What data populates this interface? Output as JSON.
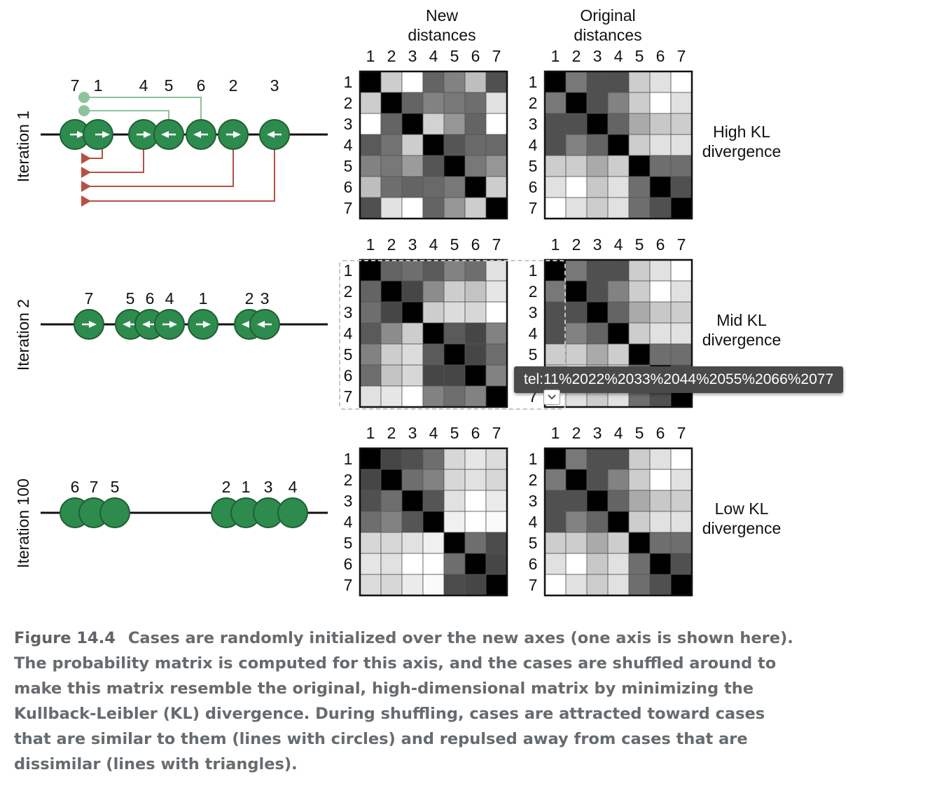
{
  "figure": {
    "column_headers": {
      "new": [
        "New",
        "distances"
      ],
      "original": [
        "Original",
        "distances"
      ]
    },
    "rows": [
      {
        "iteration_label": "Iteration 1",
        "divergence_label": [
          "High KL",
          "divergence"
        ],
        "case_labels": [
          "7",
          "1",
          "4",
          "5",
          "6",
          "2",
          "3"
        ],
        "new_matrix": [
          [
            0,
            205,
            255,
            100,
            130,
            190,
            80
          ],
          [
            205,
            0,
            100,
            130,
            120,
            110,
            225
          ],
          [
            255,
            100,
            0,
            210,
            150,
            100,
            255
          ],
          [
            90,
            115,
            205,
            0,
            85,
            105,
            105
          ],
          [
            130,
            120,
            155,
            85,
            0,
            120,
            150
          ],
          [
            190,
            110,
            100,
            105,
            120,
            0,
            205
          ],
          [
            80,
            225,
            255,
            100,
            150,
            205,
            0
          ]
        ],
        "original_matrix": [
          [
            0,
            120,
            80,
            80,
            205,
            225,
            255
          ],
          [
            120,
            0,
            80,
            130,
            205,
            255,
            225
          ],
          [
            80,
            80,
            0,
            100,
            170,
            200,
            205
          ],
          [
            80,
            130,
            100,
            0,
            205,
            225,
            225
          ],
          [
            205,
            205,
            170,
            205,
            0,
            110,
            110
          ],
          [
            225,
            255,
            200,
            225,
            110,
            0,
            80
          ],
          [
            255,
            225,
            205,
            225,
            110,
            80,
            0
          ]
        ],
        "arrows": [
          {
            "x": 110,
            "dir": "right"
          },
          {
            "x": 146,
            "dir": "right"
          },
          {
            "x": 205,
            "dir": "right"
          },
          {
            "x": 241,
            "dir": "left"
          },
          {
            "x": 287,
            "dir": "left"
          },
          {
            "x": 333,
            "dir": "right"
          },
          {
            "x": 392,
            "dir": "left"
          }
        ],
        "tick_labels_x": [
          107,
          140,
          205,
          241,
          287,
          333,
          392
        ]
      },
      {
        "iteration_label": "Iteration 2",
        "divergence_label": [
          "Mid KL",
          "divergence"
        ],
        "case_labels": [
          "7",
          "5",
          "6",
          "4",
          "1",
          "2",
          "3"
        ],
        "new_matrix": [
          [
            0,
            100,
            110,
            90,
            130,
            110,
            225
          ],
          [
            100,
            0,
            70,
            140,
            205,
            195,
            230
          ],
          [
            110,
            70,
            0,
            205,
            220,
            215,
            255
          ],
          [
            90,
            140,
            205,
            0,
            90,
            70,
            130
          ],
          [
            130,
            205,
            220,
            90,
            0,
            70,
            110
          ],
          [
            110,
            195,
            215,
            70,
            70,
            0,
            130
          ],
          [
            225,
            230,
            255,
            130,
            110,
            130,
            0
          ]
        ],
        "original_matrix": [
          [
            0,
            120,
            80,
            80,
            205,
            225,
            255
          ],
          [
            120,
            0,
            80,
            130,
            205,
            255,
            225
          ],
          [
            80,
            80,
            0,
            100,
            170,
            200,
            205
          ],
          [
            80,
            130,
            100,
            0,
            205,
            225,
            225
          ],
          [
            205,
            205,
            170,
            205,
            0,
            110,
            110
          ],
          [
            225,
            255,
            200,
            225,
            110,
            0,
            80
          ],
          [
            255,
            225,
            205,
            225,
            110,
            80,
            0
          ]
        ],
        "arrows": [
          {
            "x": 127,
            "dir": "right"
          },
          {
            "x": 186,
            "dir": "left"
          },
          {
            "x": 214,
            "dir": "left"
          },
          {
            "x": 242,
            "dir": "right"
          },
          {
            "x": 290,
            "dir": "right"
          },
          {
            "x": 356,
            "dir": "left"
          },
          {
            "x": 378,
            "dir": "left"
          }
        ],
        "tick_labels_x": [
          127,
          186,
          214,
          242,
          290,
          356,
          378
        ]
      },
      {
        "iteration_label": "Iteration 100",
        "divergence_label": [
          "Low KL",
          "divergence"
        ],
        "case_labels": [
          "6",
          "7",
          "5",
          "2",
          "1",
          "3",
          "4"
        ],
        "new_matrix": [
          [
            0,
            70,
            80,
            110,
            215,
            230,
            220
          ],
          [
            70,
            0,
            110,
            130,
            215,
            225,
            215
          ],
          [
            80,
            110,
            0,
            85,
            225,
            255,
            235
          ],
          [
            110,
            130,
            85,
            0,
            240,
            255,
            250
          ],
          [
            215,
            215,
            225,
            240,
            0,
            110,
            75
          ],
          [
            230,
            225,
            255,
            255,
            110,
            0,
            70
          ],
          [
            220,
            215,
            235,
            250,
            75,
            70,
            0
          ]
        ],
        "original_matrix": [
          [
            0,
            120,
            80,
            80,
            205,
            225,
            255
          ],
          [
            120,
            0,
            80,
            130,
            205,
            255,
            225
          ],
          [
            80,
            80,
            0,
            100,
            170,
            200,
            205
          ],
          [
            80,
            130,
            100,
            0,
            205,
            225,
            225
          ],
          [
            205,
            205,
            170,
            205,
            0,
            110,
            110
          ],
          [
            225,
            255,
            200,
            225,
            110,
            0,
            80
          ],
          [
            255,
            225,
            205,
            225,
            110,
            80,
            0
          ]
        ],
        "arrows": [],
        "tick_labels_x": [
          107,
          134,
          164,
          323,
          351,
          383,
          418
        ]
      }
    ],
    "matrix_indices": [
      "1",
      "2",
      "3",
      "4",
      "5",
      "6",
      "7"
    ],
    "colors": {
      "node_fill": "#2e8b4e",
      "node_stroke": "#1f5f34",
      "attract": "#8cc39c",
      "repel": "#b85042"
    }
  },
  "tooltip": {
    "text": "tel:11%2022%2033%2044%2055%2066%2077"
  },
  "caption": {
    "figure_number": "Figure 14.4",
    "text": "Cases are randomly initialized over the new axes (one axis is shown here). The probability matrix is computed for this axis, and the cases are shuffled around to make this matrix resemble the original, high-dimensional matrix by minimizing the Kullback-Leibler (KL) divergence. During shuffling, cases are attracted toward cases that are similar to them (lines with circles) and repulsed away from cases that are dissimilar (lines with triangles)."
  }
}
